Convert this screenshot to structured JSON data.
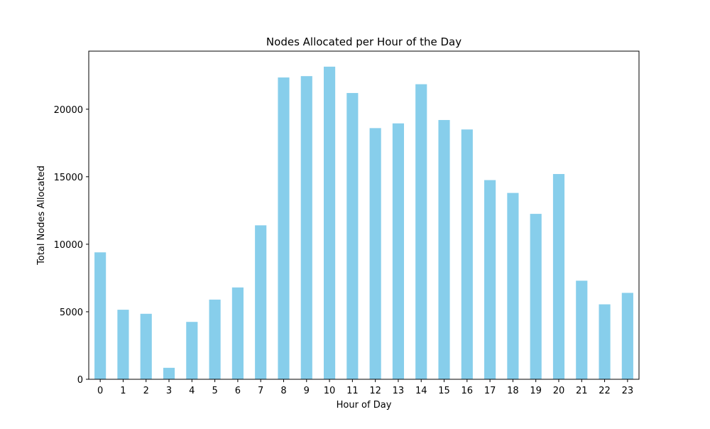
{
  "chart_data": {
    "type": "bar",
    "title": "Nodes Allocated per Hour of the Day",
    "xlabel": "Hour of Day",
    "ylabel": "Total Nodes Allocated",
    "categories": [
      "0",
      "1",
      "2",
      "3",
      "4",
      "5",
      "6",
      "7",
      "8",
      "9",
      "10",
      "11",
      "12",
      "13",
      "14",
      "15",
      "16",
      "17",
      "18",
      "19",
      "20",
      "21",
      "22",
      "23"
    ],
    "values": [
      9400,
      5150,
      4850,
      850,
      4250,
      5900,
      6800,
      11400,
      22350,
      22450,
      23150,
      21200,
      18600,
      18950,
      21850,
      19200,
      18500,
      14750,
      13800,
      12250,
      15200,
      7300,
      5550,
      6400
    ],
    "ylim": [
      0,
      24300
    ],
    "yticks": [
      0,
      5000,
      10000,
      15000,
      20000
    ],
    "bar_color": "#87ceeb",
    "grid": false,
    "legend": null
  }
}
